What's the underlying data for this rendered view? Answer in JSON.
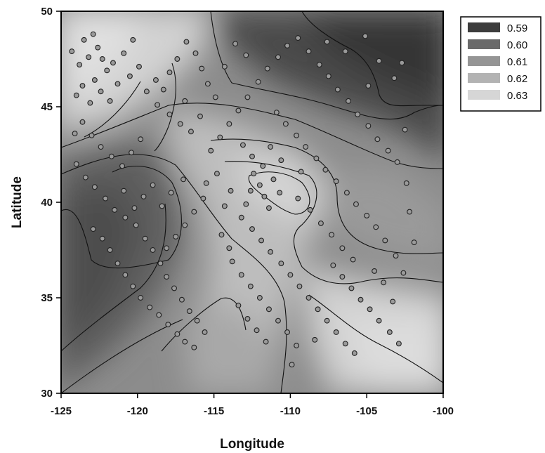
{
  "chart_data": {
    "type": "heatmap",
    "title": "",
    "xlabel": "Longitude",
    "ylabel": "Latitude",
    "xlim": [
      -125,
      -100
    ],
    "ylim": [
      30,
      50
    ],
    "x_ticks": [
      "-125",
      "-120",
      "-115",
      "-110",
      "-105",
      "-100"
    ],
    "x_tick_values": [
      -125,
      -120,
      -115,
      -110,
      -105,
      -100
    ],
    "y_ticks": [
      "30",
      "35",
      "40",
      "45",
      "50"
    ],
    "y_tick_values": [
      30,
      35,
      40,
      45,
      50
    ],
    "grid": false,
    "legend_position": "top-right",
    "legend": [
      {
        "label": "0.59",
        "value": 0.59,
        "color": "#3d3d3d"
      },
      {
        "label": "0.60",
        "value": 0.6,
        "color": "#6a6a6a"
      },
      {
        "label": "0.61",
        "value": 0.61,
        "color": "#959595"
      },
      {
        "label": "0.62",
        "value": 0.62,
        "color": "#b3b3b3"
      },
      {
        "label": "0.63",
        "value": 0.63,
        "color": "#d6d6d6"
      }
    ],
    "stations": [
      [
        -124.3,
        47.9
      ],
      [
        -123.8,
        47.2
      ],
      [
        -123.5,
        48.5
      ],
      [
        -123.2,
        47.6
      ],
      [
        -122.9,
        48.8
      ],
      [
        -122.6,
        48.1
      ],
      [
        -122.3,
        47.5
      ],
      [
        -122.0,
        46.9
      ],
      [
        -122.8,
        46.4
      ],
      [
        -123.6,
        46.1
      ],
      [
        -124.0,
        45.6
      ],
      [
        -123.1,
        45.2
      ],
      [
        -122.4,
        45.8
      ],
      [
        -121.8,
        45.3
      ],
      [
        -121.3,
        46.2
      ],
      [
        -121.6,
        47.3
      ],
      [
        -120.9,
        47.8
      ],
      [
        -120.3,
        48.5
      ],
      [
        -119.9,
        47.1
      ],
      [
        -120.5,
        46.6
      ],
      [
        -119.4,
        45.8
      ],
      [
        -118.8,
        46.4
      ],
      [
        -118.3,
        45.9
      ],
      [
        -117.9,
        46.8
      ],
      [
        -117.4,
        47.5
      ],
      [
        -116.8,
        48.4
      ],
      [
        -116.2,
        47.8
      ],
      [
        -115.8,
        47.0
      ],
      [
        -115.4,
        46.2
      ],
      [
        -114.9,
        45.5
      ],
      [
        -118.7,
        45.1
      ],
      [
        -117.9,
        44.6
      ],
      [
        -117.2,
        44.1
      ],
      [
        -116.5,
        43.7
      ],
      [
        -115.9,
        44.5
      ],
      [
        -116.9,
        45.3
      ],
      [
        -124.1,
        43.6
      ],
      [
        -123.6,
        44.2
      ],
      [
        -123.0,
        43.5
      ],
      [
        -122.4,
        42.9
      ],
      [
        -121.7,
        42.4
      ],
      [
        -121.0,
        41.9
      ],
      [
        -120.4,
        42.6
      ],
      [
        -119.8,
        43.3
      ],
      [
        -124.0,
        42.0
      ],
      [
        -123.4,
        41.3
      ],
      [
        -122.8,
        40.8
      ],
      [
        -122.1,
        40.2
      ],
      [
        -121.5,
        39.6
      ],
      [
        -120.8,
        39.2
      ],
      [
        -120.1,
        38.8
      ],
      [
        -119.5,
        38.1
      ],
      [
        -119.0,
        37.5
      ],
      [
        -118.5,
        36.8
      ],
      [
        -118.1,
        36.1
      ],
      [
        -117.6,
        35.5
      ],
      [
        -117.1,
        34.9
      ],
      [
        -116.6,
        34.3
      ],
      [
        -116.1,
        33.8
      ],
      [
        -115.6,
        33.2
      ],
      [
        -122.9,
        38.6
      ],
      [
        -122.3,
        38.1
      ],
      [
        -121.8,
        37.5
      ],
      [
        -121.3,
        36.8
      ],
      [
        -120.8,
        36.2
      ],
      [
        -120.3,
        35.6
      ],
      [
        -119.8,
        35.0
      ],
      [
        -119.2,
        34.5
      ],
      [
        -118.6,
        34.1
      ],
      [
        -118.0,
        33.6
      ],
      [
        -117.4,
        33.1
      ],
      [
        -116.9,
        32.7
      ],
      [
        -116.3,
        32.4
      ],
      [
        -115.2,
        42.7
      ],
      [
        -114.6,
        43.4
      ],
      [
        -114.0,
        44.1
      ],
      [
        -113.4,
        44.8
      ],
      [
        -112.8,
        45.5
      ],
      [
        -112.1,
        46.3
      ],
      [
        -111.5,
        47.0
      ],
      [
        -110.8,
        47.6
      ],
      [
        -110.2,
        48.2
      ],
      [
        -109.5,
        48.6
      ],
      [
        -108.8,
        47.9
      ],
      [
        -108.1,
        47.2
      ],
      [
        -107.5,
        46.6
      ],
      [
        -106.9,
        45.9
      ],
      [
        -106.2,
        45.3
      ],
      [
        -105.6,
        44.6
      ],
      [
        -104.9,
        44.0
      ],
      [
        -104.3,
        43.3
      ],
      [
        -103.6,
        42.7
      ],
      [
        -103.0,
        42.1
      ],
      [
        -113.6,
        48.3
      ],
      [
        -112.9,
        47.7
      ],
      [
        -114.3,
        47.1
      ],
      [
        -107.6,
        48.4
      ],
      [
        -106.4,
        47.9
      ],
      [
        -105.1,
        48.7
      ],
      [
        -104.2,
        47.4
      ],
      [
        -103.2,
        46.5
      ],
      [
        -102.7,
        47.3
      ],
      [
        -104.9,
        46.1
      ],
      [
        -112.4,
        41.5
      ],
      [
        -112.0,
        40.9
      ],
      [
        -111.7,
        40.3
      ],
      [
        -111.4,
        39.7
      ],
      [
        -111.8,
        41.9
      ],
      [
        -112.6,
        40.6
      ],
      [
        -111.1,
        41.2
      ],
      [
        -110.7,
        40.5
      ],
      [
        -112.9,
        39.9
      ],
      [
        -113.2,
        39.2
      ],
      [
        -112.5,
        38.6
      ],
      [
        -111.9,
        38.0
      ],
      [
        -111.3,
        37.4
      ],
      [
        -110.6,
        36.8
      ],
      [
        -110.0,
        36.2
      ],
      [
        -109.4,
        35.6
      ],
      [
        -108.8,
        35.0
      ],
      [
        -108.2,
        34.4
      ],
      [
        -107.6,
        33.8
      ],
      [
        -107.0,
        33.2
      ],
      [
        -106.4,
        32.6
      ],
      [
        -105.8,
        32.1
      ],
      [
        -113.8,
        36.9
      ],
      [
        -113.2,
        36.2
      ],
      [
        -112.6,
        35.6
      ],
      [
        -112.0,
        35.0
      ],
      [
        -111.4,
        34.4
      ],
      [
        -110.8,
        33.8
      ],
      [
        -110.2,
        33.2
      ],
      [
        -109.6,
        32.5
      ],
      [
        -114.5,
        38.3
      ],
      [
        -114.0,
        37.6
      ],
      [
        -113.4,
        34.6
      ],
      [
        -112.8,
        33.9
      ],
      [
        -112.2,
        33.3
      ],
      [
        -111.6,
        32.7
      ],
      [
        -109.9,
        31.5
      ],
      [
        -108.4,
        32.8
      ],
      [
        -107.2,
        36.7
      ],
      [
        -106.6,
        36.1
      ],
      [
        -106.0,
        35.5
      ],
      [
        -105.4,
        34.9
      ],
      [
        -104.8,
        34.4
      ],
      [
        -104.2,
        33.8
      ],
      [
        -103.5,
        33.2
      ],
      [
        -102.9,
        32.6
      ],
      [
        -103.3,
        34.8
      ],
      [
        -102.6,
        36.3
      ],
      [
        -103.1,
        37.2
      ],
      [
        -103.8,
        38.0
      ],
      [
        -104.4,
        38.7
      ],
      [
        -105.0,
        39.3
      ],
      [
        -105.7,
        39.9
      ],
      [
        -106.3,
        40.5
      ],
      [
        -107.0,
        41.1
      ],
      [
        -107.7,
        41.7
      ],
      [
        -108.3,
        42.3
      ],
      [
        -109.0,
        42.9
      ],
      [
        -109.6,
        43.5
      ],
      [
        -110.3,
        44.1
      ],
      [
        -110.9,
        44.7
      ],
      [
        -109.5,
        40.2
      ],
      [
        -108.7,
        39.6
      ],
      [
        -108.0,
        38.9
      ],
      [
        -107.3,
        38.3
      ],
      [
        -106.6,
        37.6
      ],
      [
        -105.9,
        37.0
      ],
      [
        -104.5,
        36.4
      ],
      [
        -103.9,
        35.8
      ],
      [
        -115.7,
        40.2
      ],
      [
        -116.3,
        39.5
      ],
      [
        -116.9,
        38.8
      ],
      [
        -117.5,
        38.2
      ],
      [
        -118.1,
        37.6
      ],
      [
        -117.0,
        41.2
      ],
      [
        -117.8,
        40.5
      ],
      [
        -118.4,
        39.8
      ],
      [
        -119.0,
        40.9
      ],
      [
        -119.6,
        40.3
      ],
      [
        -120.2,
        39.7
      ],
      [
        -120.9,
        40.6
      ],
      [
        -114.8,
        41.5
      ],
      [
        -115.5,
        41.0
      ],
      [
        -113.9,
        40.6
      ],
      [
        -114.3,
        39.8
      ],
      [
        -113.1,
        43.0
      ],
      [
        -112.5,
        42.4
      ],
      [
        -111.3,
        42.9
      ],
      [
        -110.6,
        42.2
      ],
      [
        -109.3,
        41.6
      ],
      [
        -102.5,
        43.8
      ],
      [
        -102.2,
        39.5
      ],
      [
        -102.4,
        41.0
      ],
      [
        -101.9,
        37.9
      ]
    ]
  }
}
